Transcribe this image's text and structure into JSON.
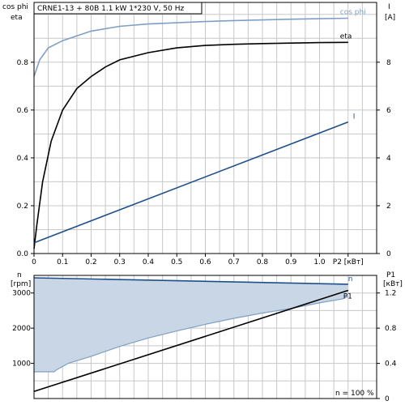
{
  "header": {
    "title": "CRNE1-13 + 80B   1.1 kW   1*230 V, 50 Hz"
  },
  "colors": {
    "grid": "#c8c8c8",
    "frame": "#000000",
    "cosphi": "#7f9fc4",
    "eta": "#000000",
    "current": "#1f4f8b",
    "speed": "#1f4f8b",
    "p1": "#000000",
    "fill": "#c9d6e5",
    "fill_edge": "#7f9fc4"
  },
  "labels": {
    "top_left_axis_line1": "cos phi",
    "top_left_axis_line2": "eta",
    "top_right_axis": "I",
    "top_right_unit": "[A]",
    "x_axis": "P2 [кВт]",
    "bottom_left_axis": "n",
    "bottom_left_unit": "[rpm]",
    "bottom_right_axis": "P1",
    "bottom_right_unit": "[кВт]",
    "note": "n = 100 %"
  },
  "chart_data": [
    {
      "type": "line",
      "x_ticks": [
        "0",
        "0.1",
        "0.2",
        "0.3",
        "0.4",
        "0.5",
        "0.6",
        "0.7",
        "0.8",
        "0.9",
        "1.0",
        "P2 [кВт]"
      ],
      "y_ticks_left": [
        "0.0",
        "0.2",
        "0.4",
        "0.6",
        "0.8"
      ],
      "y_ticks_right": [
        "0",
        "2",
        "4",
        "6",
        "8"
      ],
      "xlim": [
        0,
        1.2
      ],
      "ylim": [
        0,
        1.05
      ],
      "ylim_right": [
        0,
        10.5
      ],
      "series": [
        {
          "name": "cos phi",
          "axis": "left",
          "color": "#7f9fc4",
          "x": [
            0.0,
            0.02,
            0.05,
            0.1,
            0.15,
            0.2,
            0.3,
            0.4,
            0.5,
            0.6,
            0.7,
            0.8,
            0.9,
            1.0,
            1.1
          ],
          "y": [
            0.74,
            0.81,
            0.86,
            0.89,
            0.91,
            0.93,
            0.95,
            0.96,
            0.965,
            0.97,
            0.974,
            0.977,
            0.98,
            0.982,
            0.984
          ]
        },
        {
          "name": "eta",
          "axis": "left",
          "color": "#000000",
          "x": [
            0.0,
            0.01,
            0.03,
            0.06,
            0.1,
            0.15,
            0.2,
            0.25,
            0.3,
            0.4,
            0.5,
            0.6,
            0.7,
            0.8,
            0.9,
            1.0,
            1.1
          ],
          "y": [
            0.02,
            0.12,
            0.3,
            0.47,
            0.6,
            0.69,
            0.74,
            0.78,
            0.81,
            0.84,
            0.86,
            0.87,
            0.875,
            0.878,
            0.88,
            0.882,
            0.883
          ]
        },
        {
          "name": "I",
          "axis": "right",
          "color": "#1f4f8b",
          "x": [
            0.0,
            1.1
          ],
          "y": [
            0.45,
            5.5
          ]
        }
      ]
    },
    {
      "type": "area",
      "y_ticks_left": [
        "1000",
        "2000",
        "3000"
      ],
      "y_ticks_right": [
        "0",
        "0.4",
        "0.8",
        "1.2"
      ],
      "xlim": [
        0,
        1.2
      ],
      "ylim": [
        0,
        3500
      ],
      "ylim_right": [
        0,
        1.4
      ],
      "series": [
        {
          "name": "n",
          "axis": "left",
          "color": "#1f4f8b",
          "x": [
            0.0,
            1.1
          ],
          "y": [
            3430,
            3250
          ]
        },
        {
          "name": "P1",
          "axis": "right",
          "color": "#000000",
          "x": [
            0.0,
            1.1
          ],
          "y": [
            0.08,
            1.23
          ]
        }
      ]
    }
  ]
}
